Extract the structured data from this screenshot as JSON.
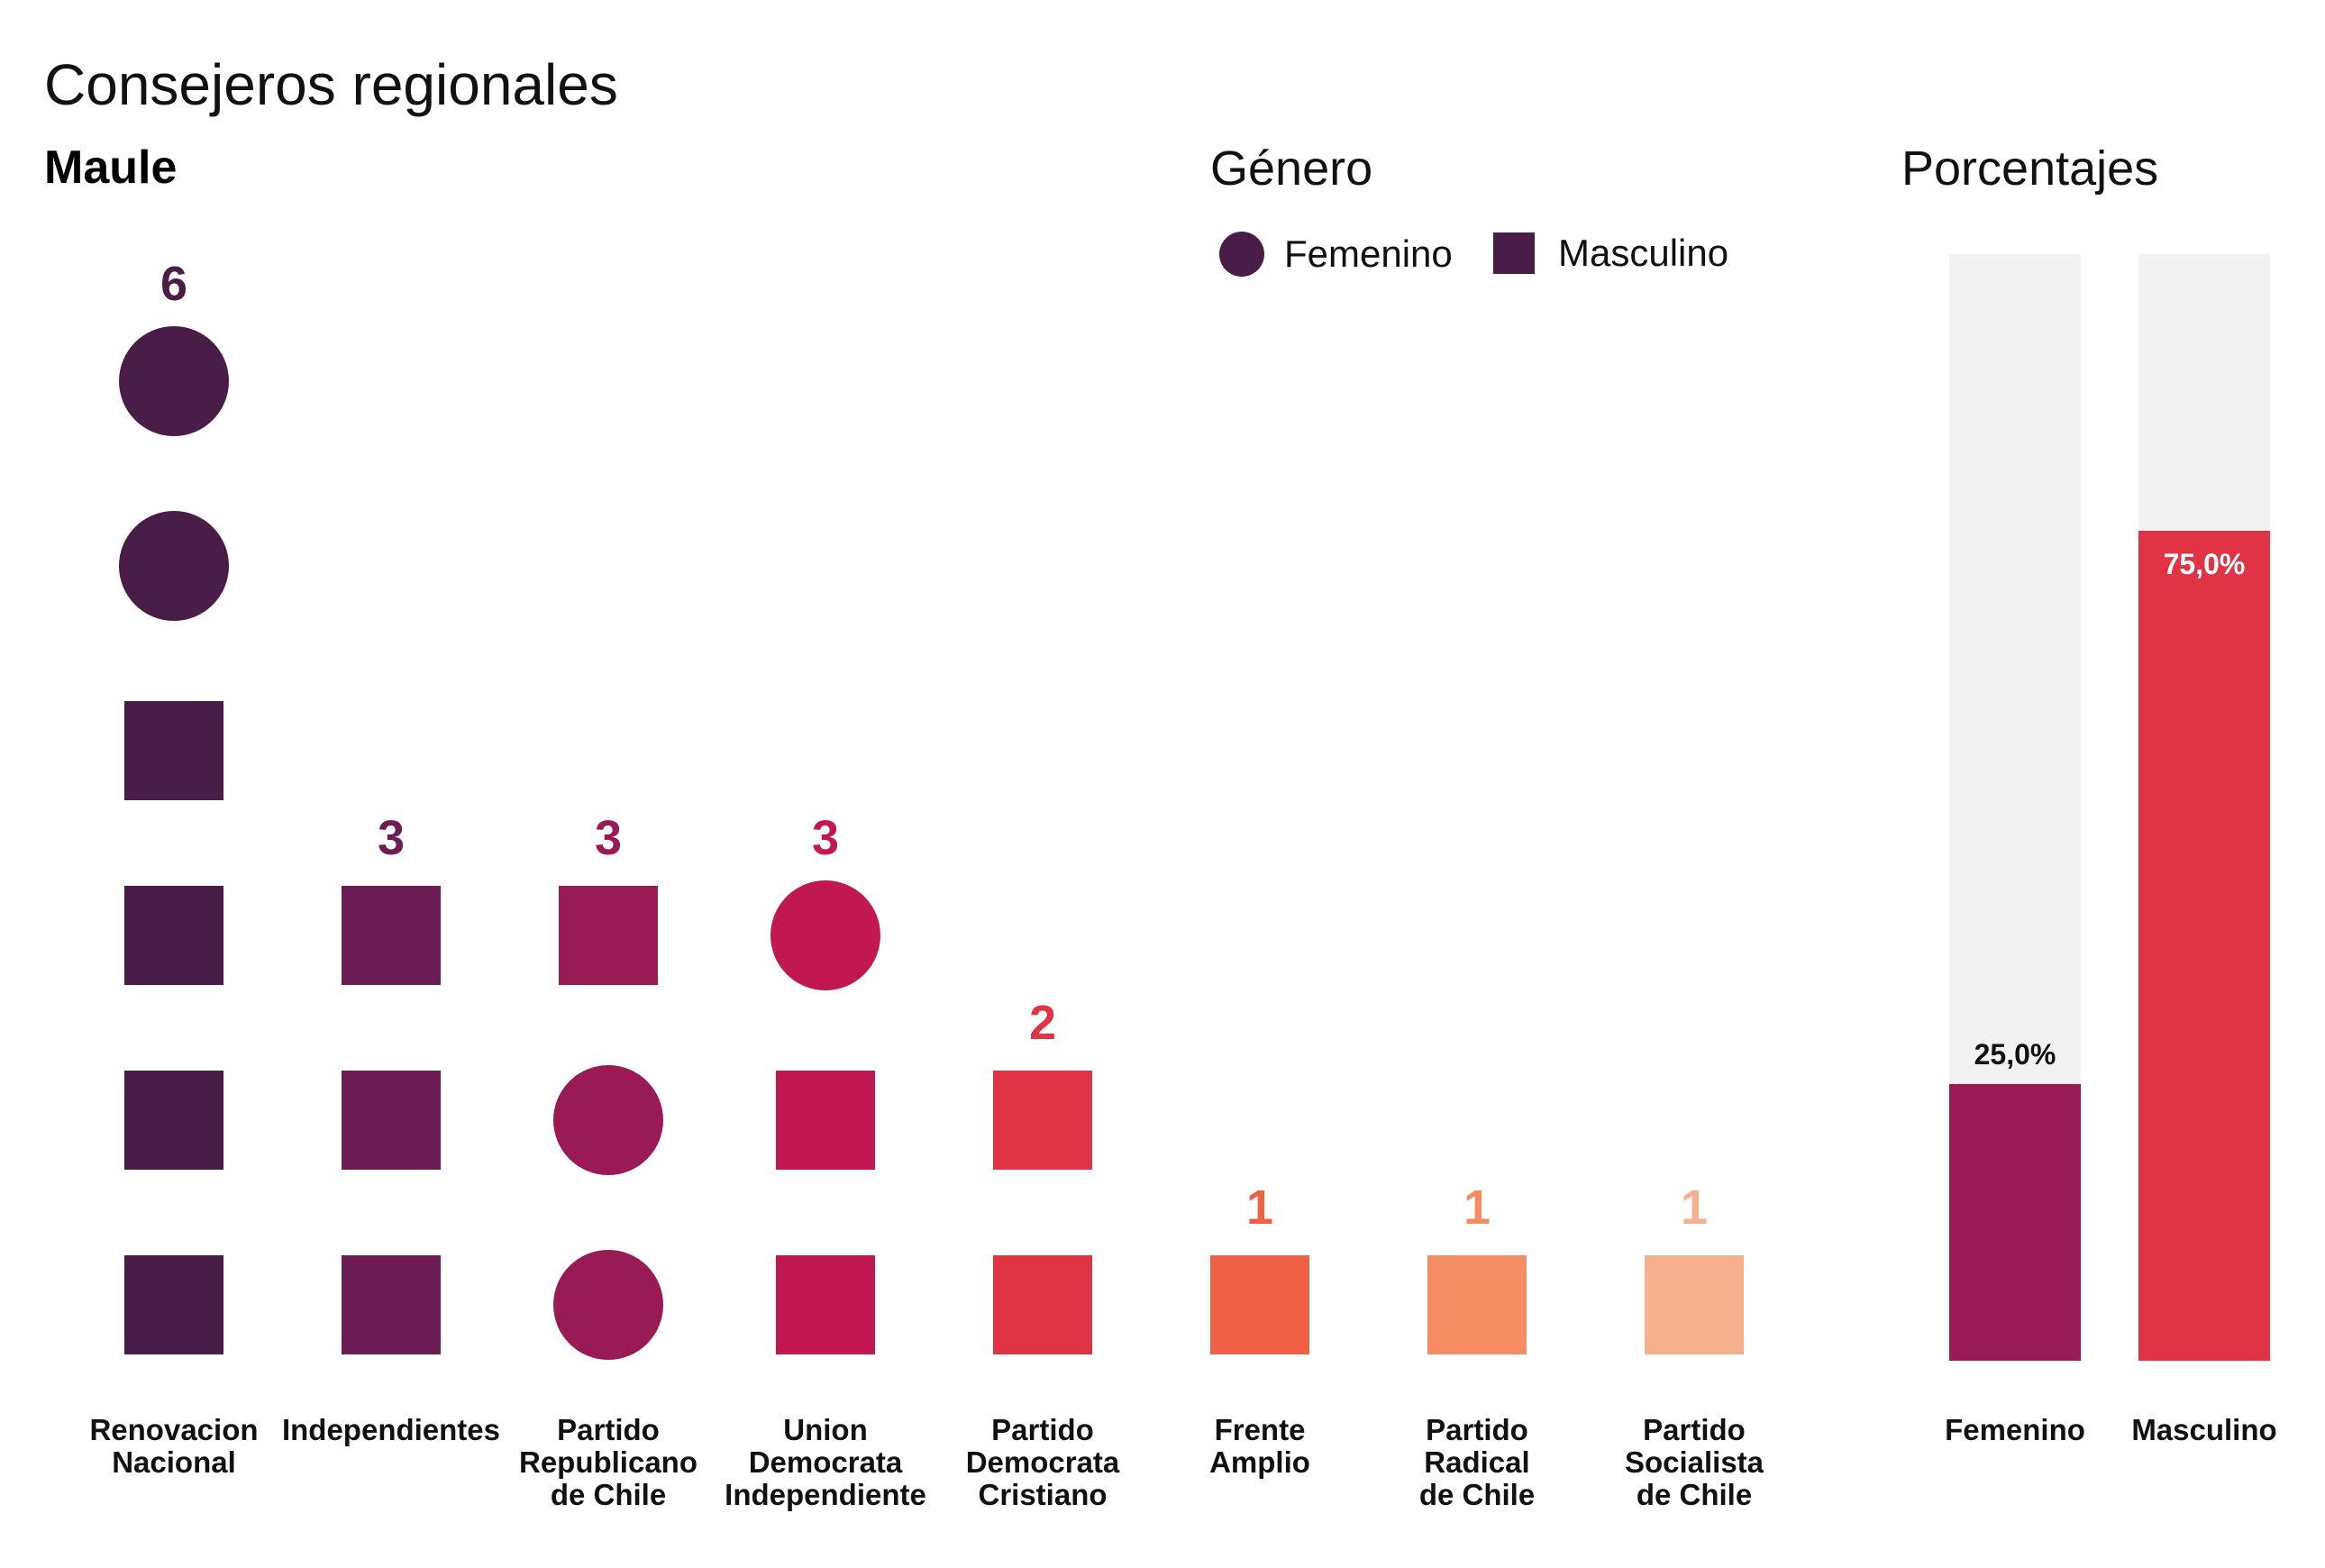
{
  "header": {
    "title": "Consejeros regionales",
    "subtitle": "Maule"
  },
  "legend": {
    "title": "Género",
    "items": [
      {
        "label": "Femenino",
        "shape": "circle"
      },
      {
        "label": "Masculino",
        "shape": "square"
      }
    ]
  },
  "percent_panel": {
    "title": "Porcentajes"
  },
  "chart_data": [
    {
      "type": "pictogram",
      "title": "Consejeros regionales",
      "subtitle": "Maule",
      "categories": [
        [
          "Renovacion",
          "Nacional"
        ],
        [
          "Independientes"
        ],
        [
          "Partido",
          "Republicano",
          "de Chile"
        ],
        [
          "Union",
          "Democrata",
          "Independiente"
        ],
        [
          "Partido",
          "Democrata",
          "Cristiano"
        ],
        [
          "Frente",
          "Amplio"
        ],
        [
          "Partido",
          "Radical",
          "de Chile"
        ],
        [
          "Partido",
          "Socialista",
          "de Chile"
        ]
      ],
      "totals": [
        "6",
        "3",
        "3",
        "3",
        "2",
        "1",
        "1",
        "1"
      ],
      "series": [
        {
          "name": "Femenino",
          "shape": "circle",
          "values": [
            2,
            0,
            2,
            1,
            0,
            0,
            0,
            0
          ]
        },
        {
          "name": "Masculino",
          "shape": "square",
          "values": [
            4,
            3,
            1,
            2,
            2,
            1,
            1,
            1
          ]
        }
      ],
      "stack_order_bottom_to_top": [
        [
          "square",
          "square",
          "square",
          "square",
          "circle",
          "circle"
        ],
        [
          "square",
          "square",
          "square"
        ],
        [
          "circle",
          "circle",
          "square"
        ],
        [
          "square",
          "square",
          "circle"
        ],
        [
          "square",
          "square"
        ],
        [
          "square"
        ],
        [
          "square"
        ],
        [
          "square"
        ]
      ],
      "colors": [
        "#4a1d47",
        "#6e1d52",
        "#9a1a56",
        "#c21851",
        "#e03343",
        "#f06044",
        "#f58c62",
        "#f6b08d"
      ]
    },
    {
      "type": "bar",
      "title": "Porcentajes",
      "categories": [
        "Femenino",
        "Masculino"
      ],
      "values": [
        25.0,
        75.0
      ],
      "value_labels": [
        "25,0%",
        "75,0%"
      ],
      "ylim": [
        0,
        100
      ],
      "colors": [
        "#9a1a56",
        "#e03343"
      ],
      "track_color": "#f2f2f2"
    }
  ]
}
